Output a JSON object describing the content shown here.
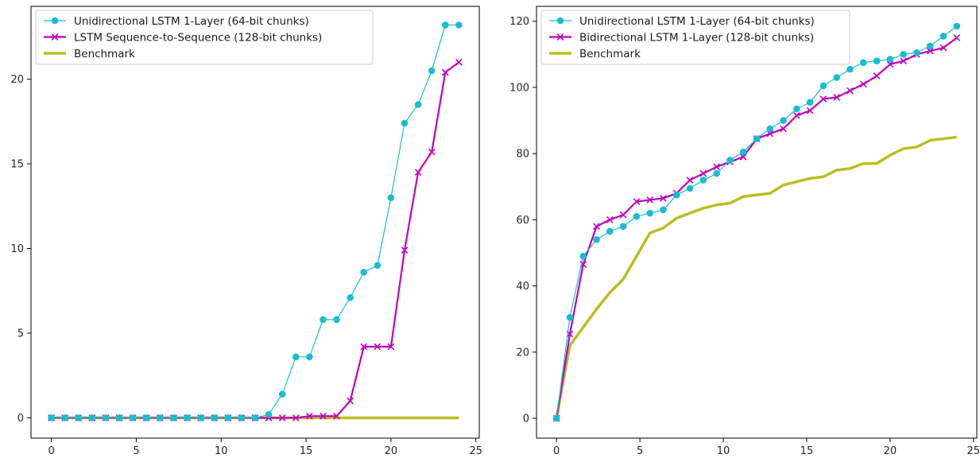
{
  "chart_data": [
    {
      "type": "line",
      "title": "",
      "xlabel": "",
      "ylabel": "",
      "xlim": [
        -1.2,
        25.2
      ],
      "ylim": [
        -1.2,
        24.3
      ],
      "xticks": [
        0,
        5,
        10,
        15,
        20,
        25
      ],
      "yticks": [
        0,
        5,
        10,
        15,
        20
      ],
      "grid": false,
      "legend_location": "upper left",
      "series": [
        {
          "name": "Unidirectional LSTM 1-Layer (64-bit chunks)",
          "color": "#17becf",
          "marker": "circle",
          "line_width": "thin",
          "x": [
            0,
            0.8,
            1.6,
            2.4,
            3.2,
            4.0,
            4.8,
            5.6,
            6.4,
            7.2,
            8.0,
            8.8,
            9.6,
            10.4,
            11.2,
            12.0,
            12.8,
            13.6,
            14.4,
            15.2,
            16.0,
            16.8,
            17.6,
            18.4,
            19.2,
            20.0,
            20.8,
            21.6,
            22.4,
            23.2,
            24.0
          ],
          "y": [
            0,
            0,
            0,
            0,
            0,
            0,
            0,
            0,
            0,
            0,
            0,
            0,
            0,
            0,
            0,
            0,
            0.2,
            1.4,
            3.6,
            3.6,
            5.8,
            5.8,
            7.1,
            8.6,
            9.0,
            13.0,
            17.4,
            18.5,
            20.5,
            23.2,
            23.2
          ]
        },
        {
          "name": "LSTM Sequence-to-Sequence (128-bit chunks)",
          "color": "#bf00bf",
          "marker": "x",
          "line_width": "medium",
          "x": [
            0,
            0.8,
            1.6,
            2.4,
            3.2,
            4.0,
            4.8,
            5.6,
            6.4,
            7.2,
            8.0,
            8.8,
            9.6,
            10.4,
            11.2,
            12.0,
            12.8,
            13.6,
            14.4,
            15.2,
            16.0,
            16.8,
            17.6,
            18.4,
            19.2,
            20.0,
            20.8,
            21.6,
            22.4,
            23.2,
            24.0
          ],
          "y": [
            0,
            0,
            0,
            0,
            0,
            0,
            0,
            0,
            0,
            0,
            0,
            0,
            0,
            0,
            0,
            0,
            0,
            0,
            0,
            0.1,
            0.1,
            0.1,
            1.0,
            4.2,
            4.2,
            4.2,
            9.9,
            14.5,
            15.7,
            20.4,
            21.0
          ]
        },
        {
          "name": "Benchmark",
          "color": "#bcbd22",
          "marker": "none",
          "line_width": "thick",
          "x": [
            0,
            24
          ],
          "y": [
            0,
            0
          ]
        }
      ]
    },
    {
      "type": "line",
      "title": "",
      "xlabel": "",
      "ylabel": "",
      "xlim": [
        -1.2,
        25.2
      ],
      "ylim": [
        -6,
        124.5
      ],
      "xticks": [
        0,
        5,
        10,
        15,
        20,
        25
      ],
      "yticks": [
        0,
        20,
        40,
        60,
        80,
        100,
        120
      ],
      "grid": false,
      "legend_location": "upper left",
      "series": [
        {
          "name": "Unidirectional LSTM 1-Layer (64-bit chunks)",
          "color": "#17becf",
          "marker": "circle",
          "line_width": "thin",
          "x": [
            0,
            0.8,
            1.6,
            2.4,
            3.2,
            4.0,
            4.8,
            5.6,
            6.4,
            7.2,
            8.0,
            8.8,
            9.6,
            10.4,
            11.2,
            12.0,
            12.8,
            13.6,
            14.4,
            15.2,
            16.0,
            16.8,
            17.6,
            18.4,
            19.2,
            20.0,
            20.8,
            21.6,
            22.4,
            23.2,
            24.0
          ],
          "y": [
            0,
            30.5,
            49,
            54,
            56.5,
            58,
            61,
            62,
            63,
            67.5,
            69.5,
            72,
            74,
            78,
            80.5,
            84.5,
            87.5,
            90,
            93.5,
            95.5,
            100.5,
            103,
            105.5,
            107.5,
            108,
            108.5,
            110,
            110.5,
            112.5,
            115.5,
            118.5
          ]
        },
        {
          "name": "Bidirectional LSTM 1-Layer (128-bit chunks)",
          "color": "#bf00bf",
          "marker": "x",
          "line_width": "medium",
          "x": [
            0,
            0.8,
            1.6,
            2.4,
            3.2,
            4.0,
            4.8,
            5.6,
            6.4,
            7.2,
            8.0,
            8.8,
            9.6,
            10.4,
            11.2,
            12.0,
            12.8,
            13.6,
            14.4,
            15.2,
            16.0,
            16.8,
            17.6,
            18.4,
            19.2,
            20.0,
            20.8,
            21.6,
            22.4,
            23.2,
            24.0
          ],
          "y": [
            0,
            25.5,
            46.5,
            58,
            60,
            61.5,
            65.5,
            66,
            66.5,
            68,
            72,
            74,
            76,
            77.5,
            79,
            84.5,
            86,
            87.5,
            91.5,
            93,
            96.5,
            97,
            99,
            101,
            103.5,
            107,
            108,
            110,
            111,
            112,
            115
          ]
        },
        {
          "name": "Benchmark",
          "color": "#bcbd22",
          "marker": "none",
          "line_width": "thick",
          "x": [
            0,
            0.8,
            1.6,
            2.4,
            3.2,
            4.0,
            4.8,
            5.6,
            6.4,
            7.2,
            8.0,
            8.8,
            9.6,
            10.4,
            11.2,
            12.0,
            12.8,
            13.6,
            14.4,
            15.2,
            16.0,
            16.8,
            17.6,
            18.4,
            19.2,
            20.0,
            20.8,
            21.6,
            22.4,
            23.2,
            24.0
          ],
          "y": [
            0,
            22,
            27.5,
            33,
            38,
            42,
            49,
            56,
            57.5,
            60.5,
            62,
            63.5,
            64.5,
            65,
            67,
            67.5,
            68,
            70.5,
            71.5,
            72.5,
            73,
            75,
            75.5,
            77,
            77,
            79.5,
            81.5,
            82,
            84,
            84.5,
            85
          ]
        }
      ]
    }
  ]
}
